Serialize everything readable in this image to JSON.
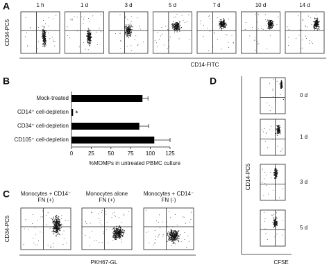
{
  "figure": {
    "panel_a": {
      "label": "A",
      "times": [
        "1 h",
        "1 d",
        "3 d",
        "5 d",
        "7 d",
        "10 d",
        "14 d"
      ],
      "y_label": "CD34-PC5",
      "x_label": "CD14-FITC"
    },
    "panel_b": {
      "label": "B"
    },
    "panel_c": {
      "label": "C",
      "titles": [
        [
          "Monocytes + CD14⁻",
          "FN (+)"
        ],
        [
          "Monocytes alone",
          "FN (+)"
        ],
        [
          "Monocytes + CD14⁻",
          "FN (-)"
        ]
      ],
      "y_label": "CD34-PC5",
      "x_label": "PKH67-GL"
    },
    "panel_d": {
      "label": "D",
      "times": [
        "0 d",
        "1 d",
        "3 d",
        "5 d"
      ],
      "y_label": "CD14-PC5",
      "x_label": "CFSE"
    }
  },
  "chart_data": {
    "type": "hbar",
    "categories": [
      "Mock-treated",
      "CD14⁺ cell-depletion",
      "CD34⁺ cell-depletion",
      "CD105⁺ cell-depletion"
    ],
    "values": [
      90,
      2,
      86,
      105
    ],
    "errors": [
      7,
      null,
      12,
      20
    ],
    "color": "#000000",
    "annotation": "*",
    "x_label": "%MOMPs in untreated PBMC culture",
    "xlim": [
      0,
      125
    ],
    "xticks": [
      0,
      25,
      50,
      75,
      100,
      125
    ]
  }
}
